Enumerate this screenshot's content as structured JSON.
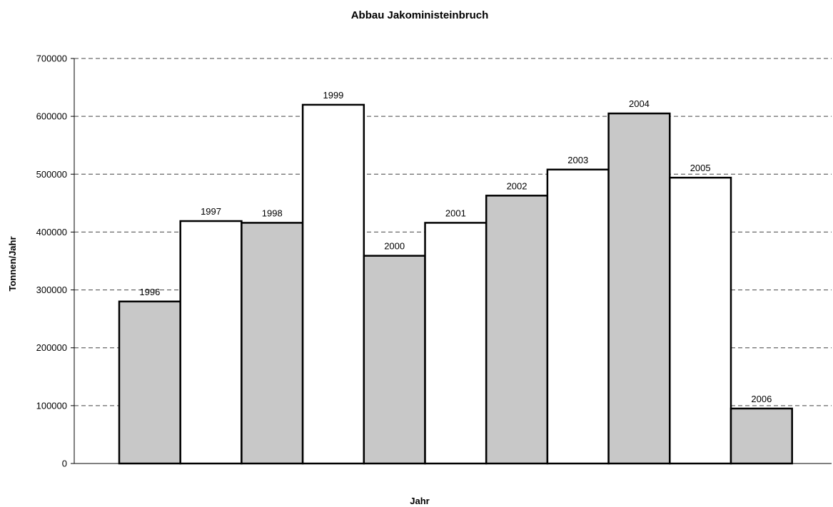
{
  "chart_data": {
    "type": "bar",
    "title": "Abbau Jakoministeinbruch",
    "xlabel": "Jahr",
    "ylabel": "Tonnen/Jahr",
    "ylim": [
      0,
      700000
    ],
    "yticks": [
      "0",
      "100000",
      "200000",
      "300000",
      "400000",
      "500000",
      "600000",
      "700000"
    ],
    "grid": true,
    "categories": [
      "1996",
      "1997",
      "1998",
      "1999",
      "2000",
      "2001",
      "2002",
      "2003",
      "2004",
      "2005",
      "2006"
    ],
    "values": [
      280000,
      419000,
      416000,
      620000,
      359000,
      416000,
      463000,
      508000,
      605000,
      494000,
      95000
    ],
    "data_labels": [
      "1996",
      "1997",
      "1998",
      "1999",
      "2000",
      "2001",
      "2002",
      "2003",
      "2004",
      "2005",
      "2006"
    ],
    "bar_colors": [
      "#c8c8c8",
      "#ffffff",
      "#c8c8c8",
      "#ffffff",
      "#c8c8c8",
      "#ffffff",
      "#c8c8c8",
      "#ffffff",
      "#c8c8c8",
      "#ffffff",
      "#c8c8c8"
    ]
  }
}
